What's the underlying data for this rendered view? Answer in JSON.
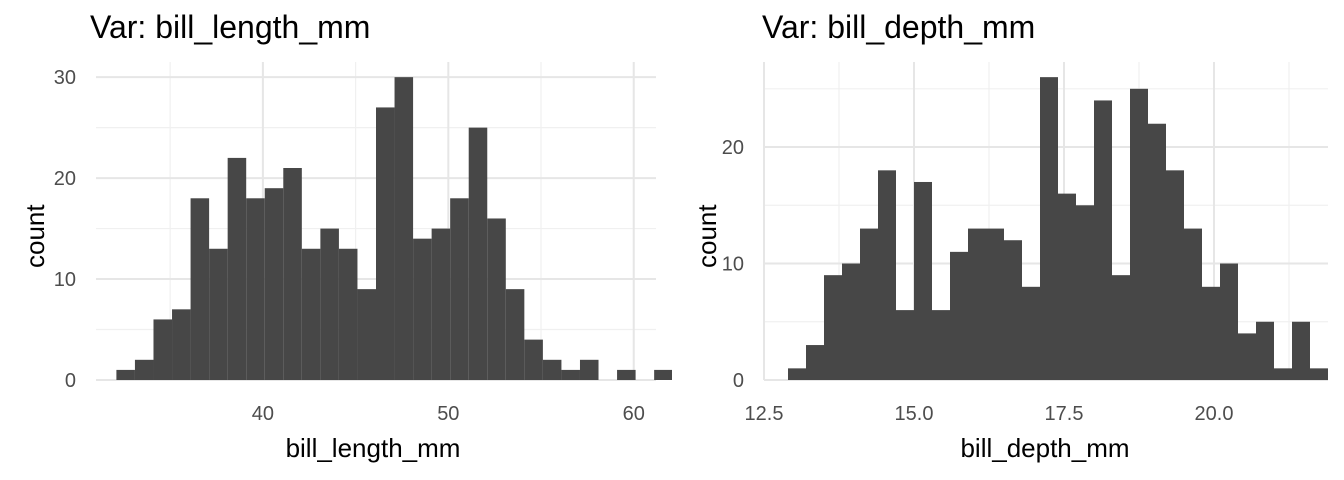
{
  "chart_data": [
    {
      "type": "bar",
      "title": "Var: bill_length_mm",
      "xlabel": "bill_length_mm",
      "ylabel": "count",
      "xlim": [
        31.0,
        61.2
      ],
      "ylim": [
        0,
        31.5
      ],
      "x_major_ticks": [
        40,
        50,
        60
      ],
      "x_minor_ticks": [
        35,
        45,
        55
      ],
      "y_major_ticks": [
        0,
        10,
        20,
        30
      ],
      "y_minor_ticks": [
        5,
        15,
        25
      ],
      "grid": true,
      "bar_color": "#474747",
      "bins": [
        {
          "x0": 32.1,
          "x1": 33.1,
          "count": 1
        },
        {
          "x0": 33.1,
          "x1": 34.1,
          "count": 2
        },
        {
          "x0": 34.1,
          "x1": 35.1,
          "count": 6
        },
        {
          "x0": 35.1,
          "x1": 36.1,
          "count": 7
        },
        {
          "x0": 36.1,
          "x1": 37.1,
          "count": 18
        },
        {
          "x0": 37.1,
          "x1": 38.1,
          "count": 13
        },
        {
          "x0": 38.1,
          "x1": 39.1,
          "count": 22
        },
        {
          "x0": 39.1,
          "x1": 40.1,
          "count": 18
        },
        {
          "x0": 40.1,
          "x1": 41.1,
          "count": 19
        },
        {
          "x0": 41.1,
          "x1": 42.1,
          "count": 21
        },
        {
          "x0": 42.1,
          "x1": 43.1,
          "count": 13
        },
        {
          "x0": 43.1,
          "x1": 44.1,
          "count": 15
        },
        {
          "x0": 44.1,
          "x1": 45.1,
          "count": 13
        },
        {
          "x0": 45.1,
          "x1": 46.1,
          "count": 9
        },
        {
          "x0": 46.1,
          "x1": 47.1,
          "count": 27
        },
        {
          "x0": 47.1,
          "x1": 48.1,
          "count": 30
        },
        {
          "x0": 48.1,
          "x1": 49.1,
          "count": 14
        },
        {
          "x0": 49.1,
          "x1": 50.1,
          "count": 15
        },
        {
          "x0": 50.1,
          "x1": 51.1,
          "count": 18
        },
        {
          "x0": 51.1,
          "x1": 52.1,
          "count": 25
        },
        {
          "x0": 52.1,
          "x1": 53.1,
          "count": 16
        },
        {
          "x0": 53.1,
          "x1": 54.1,
          "count": 9
        },
        {
          "x0": 54.1,
          "x1": 55.1,
          "count": 4
        },
        {
          "x0": 55.1,
          "x1": 56.1,
          "count": 2
        },
        {
          "x0": 56.1,
          "x1": 57.1,
          "count": 1
        },
        {
          "x0": 57.1,
          "x1": 58.1,
          "count": 2
        },
        {
          "x0": 58.1,
          "x1": 59.1,
          "count": 0
        },
        {
          "x0": 59.1,
          "x1": 60.1,
          "count": 1
        },
        {
          "x0": 60.1,
          "x1": 61.1,
          "count": 0
        },
        {
          "x0": 61.1,
          "x1": 62.1,
          "count": 1
        }
      ]
    },
    {
      "type": "bar",
      "title": "Var: bill_depth_mm",
      "xlabel": "bill_depth_mm",
      "ylabel": "count",
      "xlim": [
        12.5,
        21.9
      ],
      "ylim": [
        0,
        27.3
      ],
      "x_major_ticks": [
        12.5,
        15.0,
        17.5,
        20.0
      ],
      "x_minor_ticks": [
        13.75,
        16.25,
        18.75,
        21.25
      ],
      "y_major_ticks": [
        0,
        10,
        20
      ],
      "y_minor_ticks": [
        5,
        15,
        25
      ],
      "grid": true,
      "bar_color": "#474747",
      "bins": [
        {
          "x0": 12.9,
          "x1": 13.2,
          "count": 1
        },
        {
          "x0": 13.2,
          "x1": 13.5,
          "count": 3
        },
        {
          "x0": 13.5,
          "x1": 13.8,
          "count": 9
        },
        {
          "x0": 13.8,
          "x1": 14.1,
          "count": 10
        },
        {
          "x0": 14.1,
          "x1": 14.4,
          "count": 13
        },
        {
          "x0": 14.4,
          "x1": 14.7,
          "count": 18
        },
        {
          "x0": 14.7,
          "x1": 15.0,
          "count": 6
        },
        {
          "x0": 15.0,
          "x1": 15.3,
          "count": 17
        },
        {
          "x0": 15.3,
          "x1": 15.6,
          "count": 6
        },
        {
          "x0": 15.6,
          "x1": 15.9,
          "count": 11
        },
        {
          "x0": 15.9,
          "x1": 16.2,
          "count": 13
        },
        {
          "x0": 16.2,
          "x1": 16.5,
          "count": 13
        },
        {
          "x0": 16.5,
          "x1": 16.8,
          "count": 12
        },
        {
          "x0": 16.8,
          "x1": 17.1,
          "count": 8
        },
        {
          "x0": 17.1,
          "x1": 17.4,
          "count": 26
        },
        {
          "x0": 17.4,
          "x1": 17.7,
          "count": 16
        },
        {
          "x0": 17.7,
          "x1": 18.0,
          "count": 15
        },
        {
          "x0": 18.0,
          "x1": 18.3,
          "count": 24
        },
        {
          "x0": 18.3,
          "x1": 18.6,
          "count": 9
        },
        {
          "x0": 18.6,
          "x1": 18.9,
          "count": 25
        },
        {
          "x0": 18.9,
          "x1": 19.2,
          "count": 22
        },
        {
          "x0": 19.2,
          "x1": 19.5,
          "count": 18
        },
        {
          "x0": 19.5,
          "x1": 19.8,
          "count": 13
        },
        {
          "x0": 19.8,
          "x1": 20.1,
          "count": 8
        },
        {
          "x0": 20.1,
          "x1": 20.4,
          "count": 10
        },
        {
          "x0": 20.4,
          "x1": 20.7,
          "count": 4
        },
        {
          "x0": 20.7,
          "x1": 21.0,
          "count": 5
        },
        {
          "x0": 21.0,
          "x1": 21.3,
          "count": 1
        },
        {
          "x0": 21.3,
          "x1": 21.6,
          "count": 5
        },
        {
          "x0": 21.6,
          "x1": 21.9,
          "count": 1
        }
      ]
    }
  ]
}
